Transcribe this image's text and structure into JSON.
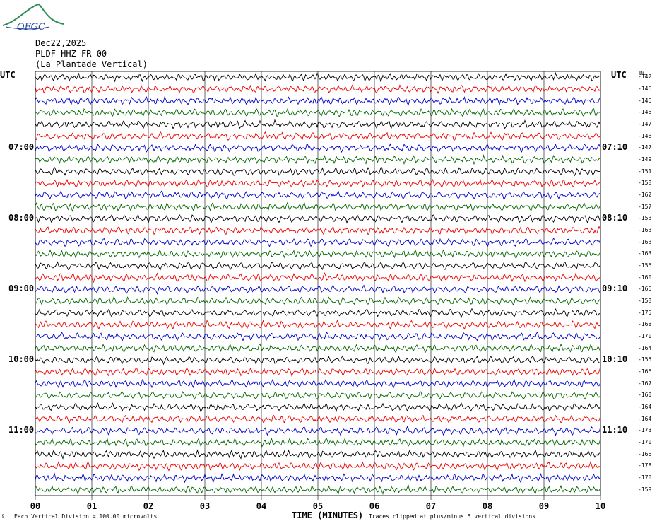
{
  "logo_text": "OFGC",
  "header": {
    "date": "Dec22,2025",
    "station": "PLDF HHZ FR 00",
    "location": "(La Plantade Vertical)"
  },
  "utc_left": "UTC",
  "utc_right": "UTC",
  "dc_label": "DC",
  "footer": {
    "division": "Each Vertical Division = 100.00 microvolts",
    "clip": "Traces clipped at plus/minus 5 vertical divisions",
    "mark": "ª"
  },
  "colors": {
    "trace": [
      "#000000",
      "#ee0000",
      "#0000cc",
      "#006600"
    ],
    "grid": "#000000"
  },
  "chart_data": {
    "type": "line",
    "title": "",
    "xlabel": "TIME (MINUTES)",
    "ylabel": "",
    "x_ticks": [
      "00",
      "01",
      "02",
      "03",
      "04",
      "05",
      "06",
      "07",
      "08",
      "09",
      "10"
    ],
    "xlim": [
      0,
      10
    ],
    "left_hour_labels": [
      "07:00",
      "08:00",
      "09:00",
      "10:00",
      "11:00"
    ],
    "right_hour_labels": [
      "07:10",
      "08:10",
      "09:10",
      "10:10",
      "11:10"
    ],
    "dc_offsets": [
      -142,
      -146,
      -146,
      -146,
      -147,
      -148,
      -147,
      -149,
      -151,
      -158,
      -162,
      -157,
      -153,
      -163,
      -163,
      -163,
      -156,
      -160,
      -166,
      -158,
      -175,
      -168,
      -170,
      -164,
      -155,
      -166,
      -167,
      -160,
      -164,
      -164,
      -173,
      -170,
      -166,
      -178,
      -170,
      -159
    ]
  }
}
